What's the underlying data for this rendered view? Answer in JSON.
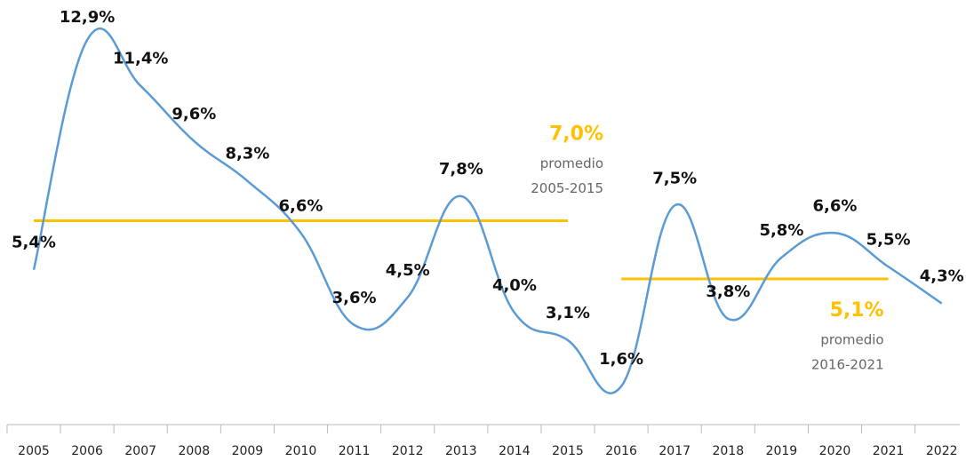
{
  "chart_data": {
    "type": "line",
    "categories": [
      "2005",
      "2006",
      "2007",
      "2008",
      "2009",
      "2010",
      "2011",
      "2012",
      "2013",
      "2014",
      "2015",
      "2016",
      "2017",
      "2018",
      "2019",
      "2020",
      "2021",
      "2022"
    ],
    "values": [
      5.4,
      12.9,
      11.4,
      9.6,
      8.3,
      6.6,
      3.6,
      4.5,
      7.8,
      4.0,
      3.1,
      1.6,
      7.5,
      3.8,
      5.8,
      6.6,
      5.5,
      4.3
    ],
    "value_labels": [
      "5,4%",
      "12,9%",
      "11,4%",
      "9,6%",
      "8,3%",
      "6,6%",
      "3,6%",
      "4,5%",
      "7,8%",
      "4,0%",
      "3,1%",
      "1,6%",
      "7,5%",
      "3,8%",
      "5,8%",
      "6,6%",
      "5,5%",
      "4,3%"
    ],
    "color": "#5b9bd5",
    "ylim": [
      0,
      14
    ],
    "averages": [
      {
        "value": 7.0,
        "label": "7,0%",
        "text": "promedio",
        "period": "2005-2015",
        "from": "2005",
        "to": "2015",
        "color": "#ffc000"
      },
      {
        "value": 5.1,
        "label": "5,1%",
        "text": "promedio",
        "period": "2016-2021",
        "from": "2016",
        "to": "2021",
        "color": "#ffc000"
      }
    ]
  }
}
